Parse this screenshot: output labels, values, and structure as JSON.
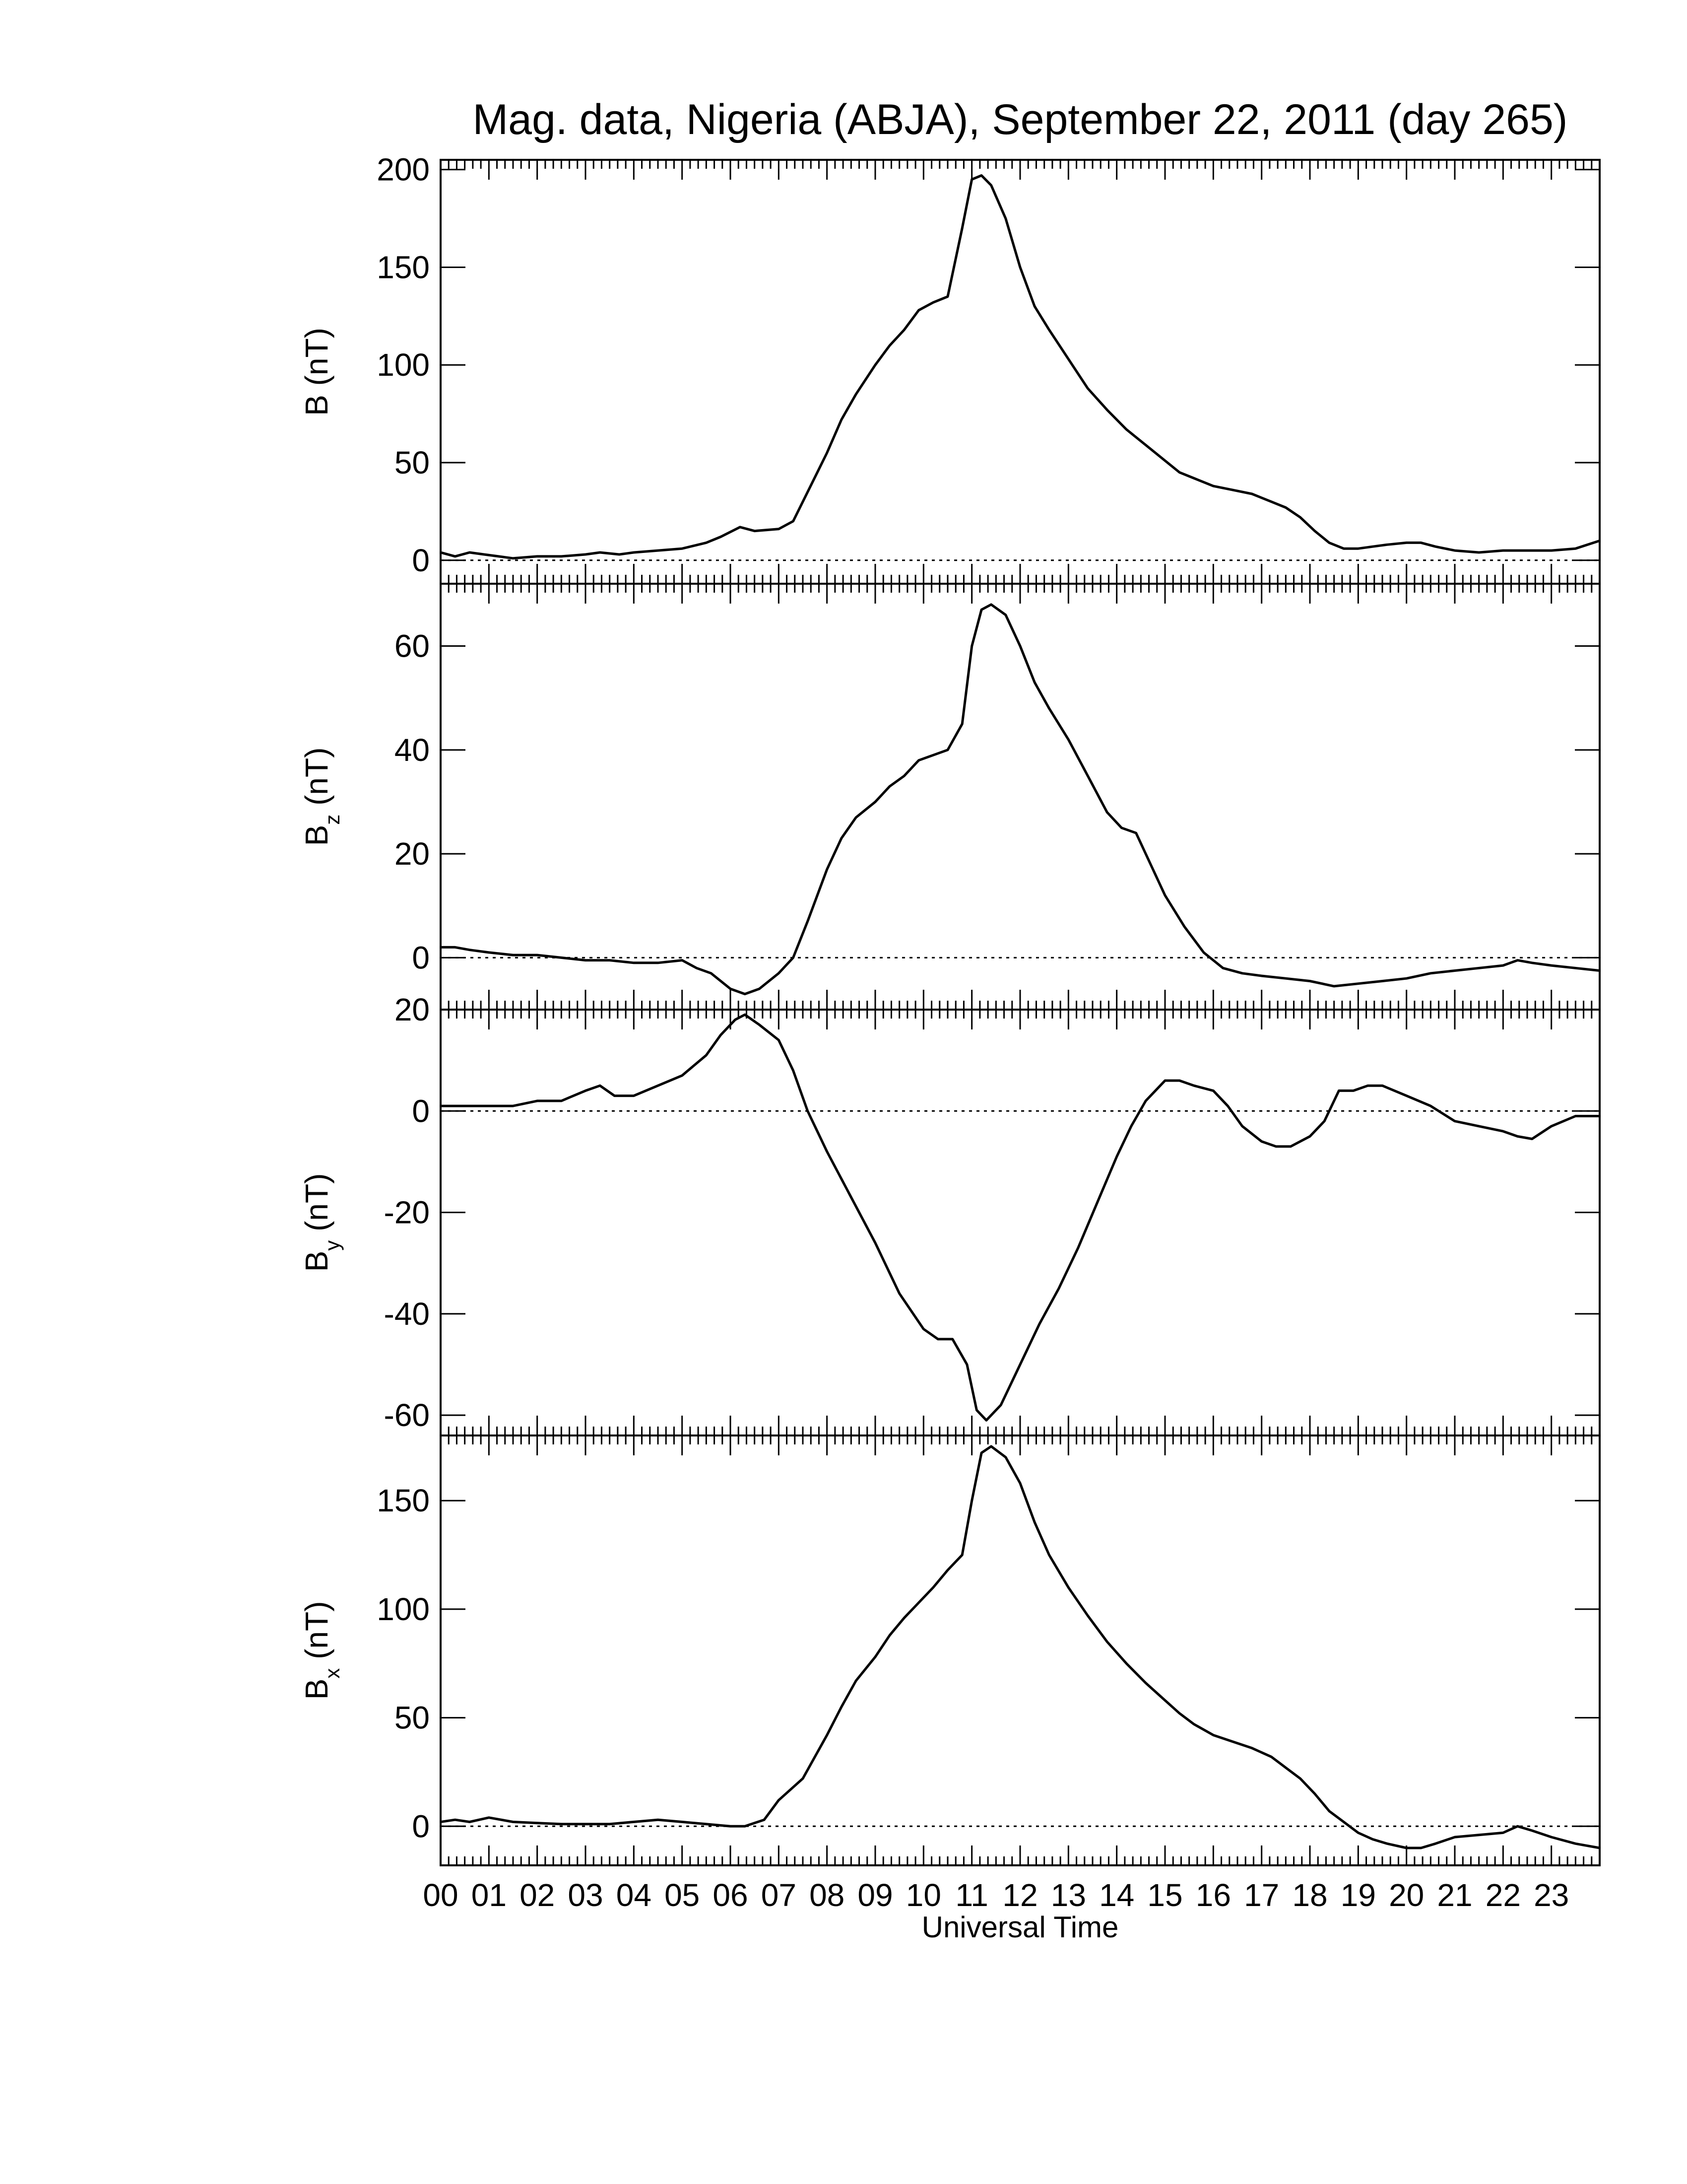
{
  "title": "Mag. data, Nigeria (ABJA), September 22, 2011 (day 265)",
  "xlabel": "Universal Time",
  "line_color": "#000000",
  "chart_data": [
    {
      "type": "line",
      "ylabel_main": "B",
      "ylabel_sub": "",
      "ylabel_unit": "(nT)",
      "ylim": [
        -12,
        205
      ],
      "yticks": [
        0,
        50,
        100,
        150,
        200
      ],
      "zero_line": true,
      "xlim": [
        0,
        24
      ],
      "x": [
        0,
        0.3,
        0.6,
        0.9,
        1.2,
        1.5,
        2,
        2.5,
        3,
        3.3,
        3.7,
        4,
        4.5,
        5,
        5.5,
        5.8,
        6.2,
        6.5,
        7,
        7.3,
        7.7,
        8,
        8.3,
        8.6,
        9,
        9.3,
        9.6,
        9.9,
        10.2,
        10.5,
        10.8,
        11,
        11.2,
        11.4,
        11.7,
        12,
        12.3,
        12.6,
        13,
        13.4,
        13.8,
        14.2,
        14.6,
        15,
        15.3,
        15.6,
        16,
        16.4,
        16.8,
        17.2,
        17.5,
        17.8,
        18.1,
        18.4,
        18.7,
        19,
        19.3,
        19.6,
        20,
        20.3,
        20.6,
        21,
        21.5,
        22,
        22.5,
        23,
        23.5,
        24
      ],
      "y": [
        4,
        2,
        4,
        3,
        2,
        1,
        2,
        2,
        3,
        4,
        3,
        4,
        5,
        6,
        9,
        12,
        17,
        15,
        16,
        20,
        40,
        55,
        72,
        85,
        100,
        110,
        118,
        128,
        132,
        135,
        170,
        195,
        197,
        192,
        175,
        150,
        130,
        118,
        103,
        88,
        77,
        67,
        59,
        51,
        45,
        42,
        38,
        36,
        34,
        30,
        27,
        22,
        15,
        9,
        6,
        6,
        7,
        8,
        9,
        9,
        7,
        5,
        4,
        5,
        5,
        5,
        6,
        10
      ]
    },
    {
      "type": "line",
      "ylabel_main": "B",
      "ylabel_sub": "z",
      "ylabel_unit": "(nT)",
      "ylim": [
        -10,
        72
      ],
      "yticks": [
        0,
        20,
        40,
        60
      ],
      "zero_line": true,
      "xlim": [
        0,
        24
      ],
      "x": [
        0,
        0.3,
        0.6,
        1,
        1.5,
        2,
        2.5,
        3,
        3.5,
        4,
        4.5,
        5,
        5.3,
        5.6,
        6,
        6.3,
        6.6,
        7,
        7.3,
        7.6,
        8,
        8.3,
        8.6,
        9,
        9.3,
        9.6,
        9.9,
        10.2,
        10.5,
        10.8,
        11,
        11.2,
        11.4,
        11.7,
        12,
        12.3,
        12.6,
        13,
        13.4,
        13.8,
        14.1,
        14.4,
        14.7,
        15,
        15.4,
        15.8,
        16.2,
        16.6,
        17,
        17.5,
        18,
        18.5,
        19,
        19.5,
        20,
        20.5,
        21,
        21.5,
        22,
        22.3,
        22.6,
        23,
        23.5,
        24
      ],
      "y": [
        2,
        2,
        1.5,
        1,
        0.5,
        0.5,
        0,
        -0.5,
        -0.5,
        -1,
        -1,
        -0.5,
        -2,
        -3,
        -6,
        -7,
        -6,
        -3,
        0,
        7,
        17,
        23,
        27,
        30,
        33,
        35,
        38,
        39,
        40,
        45,
        60,
        67,
        68,
        66,
        60,
        53,
        48,
        42,
        35,
        28,
        25,
        24,
        18,
        12,
        6,
        1,
        -2,
        -3,
        -3.5,
        -4,
        -4.5,
        -5.5,
        -5,
        -4.5,
        -4,
        -3,
        -2.5,
        -2,
        -1.5,
        -0.5,
        -1,
        -1.5,
        -2,
        -2.5
      ]
    },
    {
      "type": "line",
      "ylabel_main": "B",
      "ylabel_sub": "y",
      "ylabel_unit": "(nT)",
      "ylim": [
        -64,
        20
      ],
      "yticks": [
        20,
        0,
        -20,
        -40,
        -60
      ],
      "zero_line": true,
      "xlim": [
        0,
        24
      ],
      "x": [
        0,
        0.5,
        1,
        1.5,
        2,
        2.5,
        3,
        3.3,
        3.6,
        4,
        4.5,
        5,
        5.5,
        5.8,
        6.1,
        6.3,
        6.6,
        7,
        7.3,
        7.6,
        8,
        8.5,
        9,
        9.5,
        10,
        10.3,
        10.6,
        10.9,
        11.1,
        11.3,
        11.6,
        12,
        12.4,
        12.8,
        13.2,
        13.6,
        14,
        14.3,
        14.6,
        15,
        15.3,
        15.6,
        16,
        16.3,
        16.6,
        17,
        17.3,
        17.6,
        18,
        18.3,
        18.6,
        18.9,
        19.2,
        19.5,
        20,
        20.5,
        21,
        21.5,
        22,
        22.3,
        22.6,
        23,
        23.5,
        24
      ],
      "y": [
        1,
        1,
        1,
        1,
        2,
        2,
        4,
        5,
        3,
        3,
        5,
        7,
        11,
        15,
        18,
        19,
        17,
        14,
        8,
        0,
        -8,
        -17,
        -26,
        -36,
        -43,
        -45,
        -45,
        -50,
        -59,
        -61,
        -58,
        -50,
        -42,
        -35,
        -27,
        -18,
        -9,
        -3,
        2,
        6,
        6,
        5,
        4,
        1,
        -3,
        -6,
        -7,
        -7,
        -5,
        -2,
        4,
        4,
        5,
        5,
        3,
        1,
        -2,
        -3,
        -4,
        -5,
        -5.5,
        -3,
        -1,
        -1
      ]
    },
    {
      "type": "line",
      "ylabel_main": "B",
      "ylabel_sub": "x",
      "ylabel_unit": "(nT)",
      "ylim": [
        -18,
        180
      ],
      "yticks": [
        0,
        50,
        100,
        150
      ],
      "zero_line": true,
      "xlim": [
        0,
        24
      ],
      "x": [
        0,
        0.3,
        0.6,
        1,
        1.5,
        2,
        2.5,
        3,
        3.5,
        4,
        4.5,
        5,
        5.5,
        6,
        6.3,
        6.7,
        7,
        7.5,
        8,
        8.3,
        8.6,
        9,
        9.3,
        9.6,
        9.9,
        10.2,
        10.5,
        10.8,
        11,
        11.2,
        11.4,
        11.7,
        12,
        12.3,
        12.6,
        13,
        13.4,
        13.8,
        14.2,
        14.6,
        15,
        15.3,
        15.6,
        16,
        16.4,
        16.8,
        17.2,
        17.5,
        17.8,
        18.1,
        18.4,
        18.7,
        19,
        19.3,
        19.6,
        20,
        20.3,
        20.6,
        21,
        21.5,
        22,
        22.3,
        22.6,
        23,
        23.5,
        24
      ],
      "y": [
        2,
        3,
        2,
        4,
        2,
        1.5,
        1,
        1,
        1,
        2,
        3,
        2,
        1,
        0,
        0,
        3,
        12,
        22,
        42,
        55,
        67,
        78,
        88,
        96,
        103,
        110,
        118,
        125,
        150,
        172,
        175,
        170,
        158,
        140,
        125,
        110,
        97,
        85,
        75,
        66,
        58,
        52,
        47,
        42,
        39,
        36,
        32,
        27,
        22,
        15,
        7,
        2,
        -3,
        -6,
        -8,
        -10,
        -10,
        -8,
        -5,
        -4,
        -3,
        0,
        -2,
        -5,
        -8,
        -10
      ]
    }
  ],
  "xticks": [
    "00",
    "01",
    "02",
    "03",
    "04",
    "05",
    "06",
    "07",
    "08",
    "09",
    "10",
    "11",
    "12",
    "13",
    "14",
    "15",
    "16",
    "17",
    "18",
    "19",
    "20",
    "21",
    "22",
    "23"
  ]
}
